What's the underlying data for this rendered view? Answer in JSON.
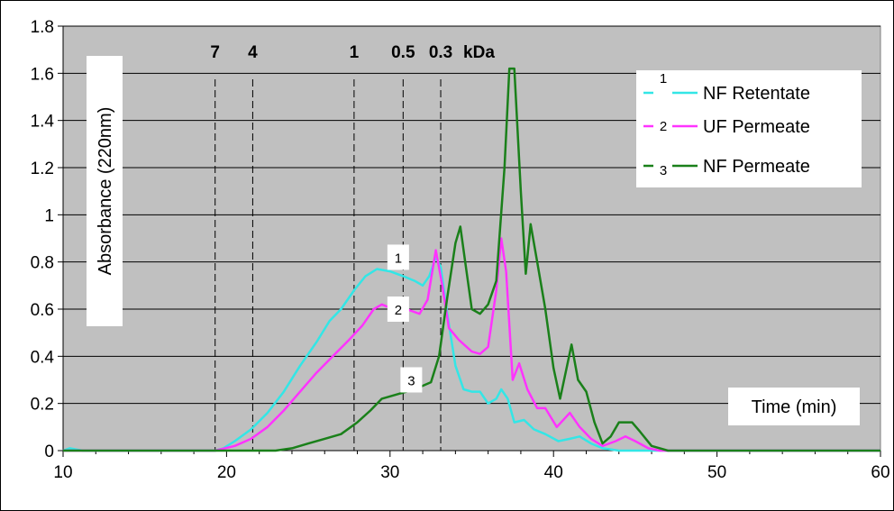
{
  "chart_data": {
    "type": "line",
    "xlabel": "Time (min)",
    "ylabel": "Absorbance (220nm)",
    "xlim": [
      10,
      60
    ],
    "ylim": [
      0,
      1.8
    ],
    "x_ticks": [
      "10",
      "20",
      "30",
      "40",
      "50",
      "60"
    ],
    "y_ticks": [
      "0",
      "0.2",
      "0.4",
      "0.6",
      "0.8",
      "1",
      "1.2",
      "1.4",
      "1.6",
      "1.8"
    ],
    "grid": "horizontal",
    "legend_position": "top-right",
    "mw_markers": [
      {
        "label": "7",
        "x": 19.3
      },
      {
        "label": "4",
        "x": 21.6
      },
      {
        "label": "1",
        "x": 27.8
      },
      {
        "label": "0.5",
        "x": 30.8
      },
      {
        "label": "0.3",
        "x": 33.1
      }
    ],
    "mw_unit": "kDa",
    "series": [
      {
        "tag": "1",
        "name": "NF Retentate",
        "color": "#33e6e6",
        "label_at": [
          30.5,
          0.82
        ],
        "points": [
          [
            10,
            0
          ],
          [
            10.4,
            0.01
          ],
          [
            10.8,
            0.005
          ],
          [
            11.2,
            0
          ],
          [
            19.3,
            0
          ],
          [
            19.8,
            0.01
          ],
          [
            20.5,
            0.04
          ],
          [
            21.5,
            0.09
          ],
          [
            22.5,
            0.16
          ],
          [
            23.5,
            0.25
          ],
          [
            24.5,
            0.36
          ],
          [
            25.5,
            0.46
          ],
          [
            26.3,
            0.55
          ],
          [
            27.0,
            0.6
          ],
          [
            27.8,
            0.68
          ],
          [
            28.5,
            0.74
          ],
          [
            29.2,
            0.77
          ],
          [
            30.0,
            0.76
          ],
          [
            30.8,
            0.74
          ],
          [
            31.5,
            0.72
          ],
          [
            32.0,
            0.7
          ],
          [
            32.4,
            0.74
          ],
          [
            32.8,
            0.82
          ],
          [
            33.1,
            0.78
          ],
          [
            33.5,
            0.58
          ],
          [
            34.0,
            0.36
          ],
          [
            34.5,
            0.26
          ],
          [
            35.0,
            0.25
          ],
          [
            35.5,
            0.25
          ],
          [
            36.0,
            0.2
          ],
          [
            36.5,
            0.22
          ],
          [
            36.8,
            0.26
          ],
          [
            37.2,
            0.22
          ],
          [
            37.6,
            0.12
          ],
          [
            38.2,
            0.13
          ],
          [
            38.8,
            0.09
          ],
          [
            39.5,
            0.07
          ],
          [
            40.3,
            0.04
          ],
          [
            41.0,
            0.05
          ],
          [
            41.6,
            0.06
          ],
          [
            42.3,
            0.03
          ],
          [
            43.0,
            0.01
          ],
          [
            44.0,
            0
          ],
          [
            60,
            0
          ]
        ]
      },
      {
        "tag": "2",
        "name": "UF Permeate",
        "color": "#ff33ff",
        "label_at": [
          30.5,
          0.6
        ],
        "points": [
          [
            10,
            0
          ],
          [
            19.3,
            0
          ],
          [
            20.5,
            0.02
          ],
          [
            21.5,
            0.05
          ],
          [
            22.5,
            0.1
          ],
          [
            23.5,
            0.17
          ],
          [
            24.5,
            0.25
          ],
          [
            25.5,
            0.33
          ],
          [
            26.5,
            0.4
          ],
          [
            27.5,
            0.47
          ],
          [
            28.3,
            0.53
          ],
          [
            29.0,
            0.6
          ],
          [
            29.5,
            0.62
          ],
          [
            30.2,
            0.6
          ],
          [
            31.0,
            0.6
          ],
          [
            31.8,
            0.58
          ],
          [
            32.3,
            0.64
          ],
          [
            32.8,
            0.85
          ],
          [
            33.2,
            0.7
          ],
          [
            33.6,
            0.52
          ],
          [
            34.2,
            0.47
          ],
          [
            35.0,
            0.42
          ],
          [
            35.5,
            0.41
          ],
          [
            36.0,
            0.44
          ],
          [
            36.5,
            0.68
          ],
          [
            36.8,
            0.9
          ],
          [
            37.1,
            0.76
          ],
          [
            37.5,
            0.3
          ],
          [
            37.9,
            0.37
          ],
          [
            38.4,
            0.26
          ],
          [
            39.0,
            0.18
          ],
          [
            39.5,
            0.18
          ],
          [
            40.2,
            0.1
          ],
          [
            41.0,
            0.16
          ],
          [
            41.6,
            0.1
          ],
          [
            42.3,
            0.05
          ],
          [
            43.0,
            0.02
          ],
          [
            43.8,
            0.04
          ],
          [
            44.4,
            0.06
          ],
          [
            45.0,
            0.04
          ],
          [
            45.8,
            0.01
          ],
          [
            46.5,
            0
          ],
          [
            60,
            0
          ]
        ]
      },
      {
        "tag": "3",
        "name": "NF Permeate",
        "color": "#1a801a",
        "label_at": [
          31.3,
          0.3
        ],
        "points": [
          [
            10,
            0
          ],
          [
            23.0,
            0
          ],
          [
            24.0,
            0.01
          ],
          [
            25.0,
            0.03
          ],
          [
            26.0,
            0.05
          ],
          [
            27.0,
            0.07
          ],
          [
            28.0,
            0.12
          ],
          [
            28.8,
            0.17
          ],
          [
            29.5,
            0.22
          ],
          [
            30.5,
            0.24
          ],
          [
            31.5,
            0.26
          ],
          [
            32.5,
            0.29
          ],
          [
            33.0,
            0.4
          ],
          [
            33.5,
            0.65
          ],
          [
            34.0,
            0.88
          ],
          [
            34.3,
            0.95
          ],
          [
            34.6,
            0.8
          ],
          [
            35.0,
            0.6
          ],
          [
            35.5,
            0.58
          ],
          [
            36.0,
            0.62
          ],
          [
            36.5,
            0.72
          ],
          [
            37.0,
            1.2
          ],
          [
            37.3,
            1.62
          ],
          [
            37.6,
            1.62
          ],
          [
            38.0,
            1.1
          ],
          [
            38.3,
            0.75
          ],
          [
            38.6,
            0.96
          ],
          [
            39.0,
            0.8
          ],
          [
            39.5,
            0.6
          ],
          [
            40.0,
            0.35
          ],
          [
            40.4,
            0.22
          ],
          [
            40.8,
            0.35
          ],
          [
            41.1,
            0.45
          ],
          [
            41.5,
            0.3
          ],
          [
            42.0,
            0.25
          ],
          [
            42.5,
            0.12
          ],
          [
            43.0,
            0.03
          ],
          [
            43.5,
            0.06
          ],
          [
            44.0,
            0.12
          ],
          [
            44.8,
            0.12
          ],
          [
            45.3,
            0.08
          ],
          [
            46.0,
            0.02
          ],
          [
            47.0,
            0
          ],
          [
            60,
            0
          ]
        ]
      }
    ]
  }
}
